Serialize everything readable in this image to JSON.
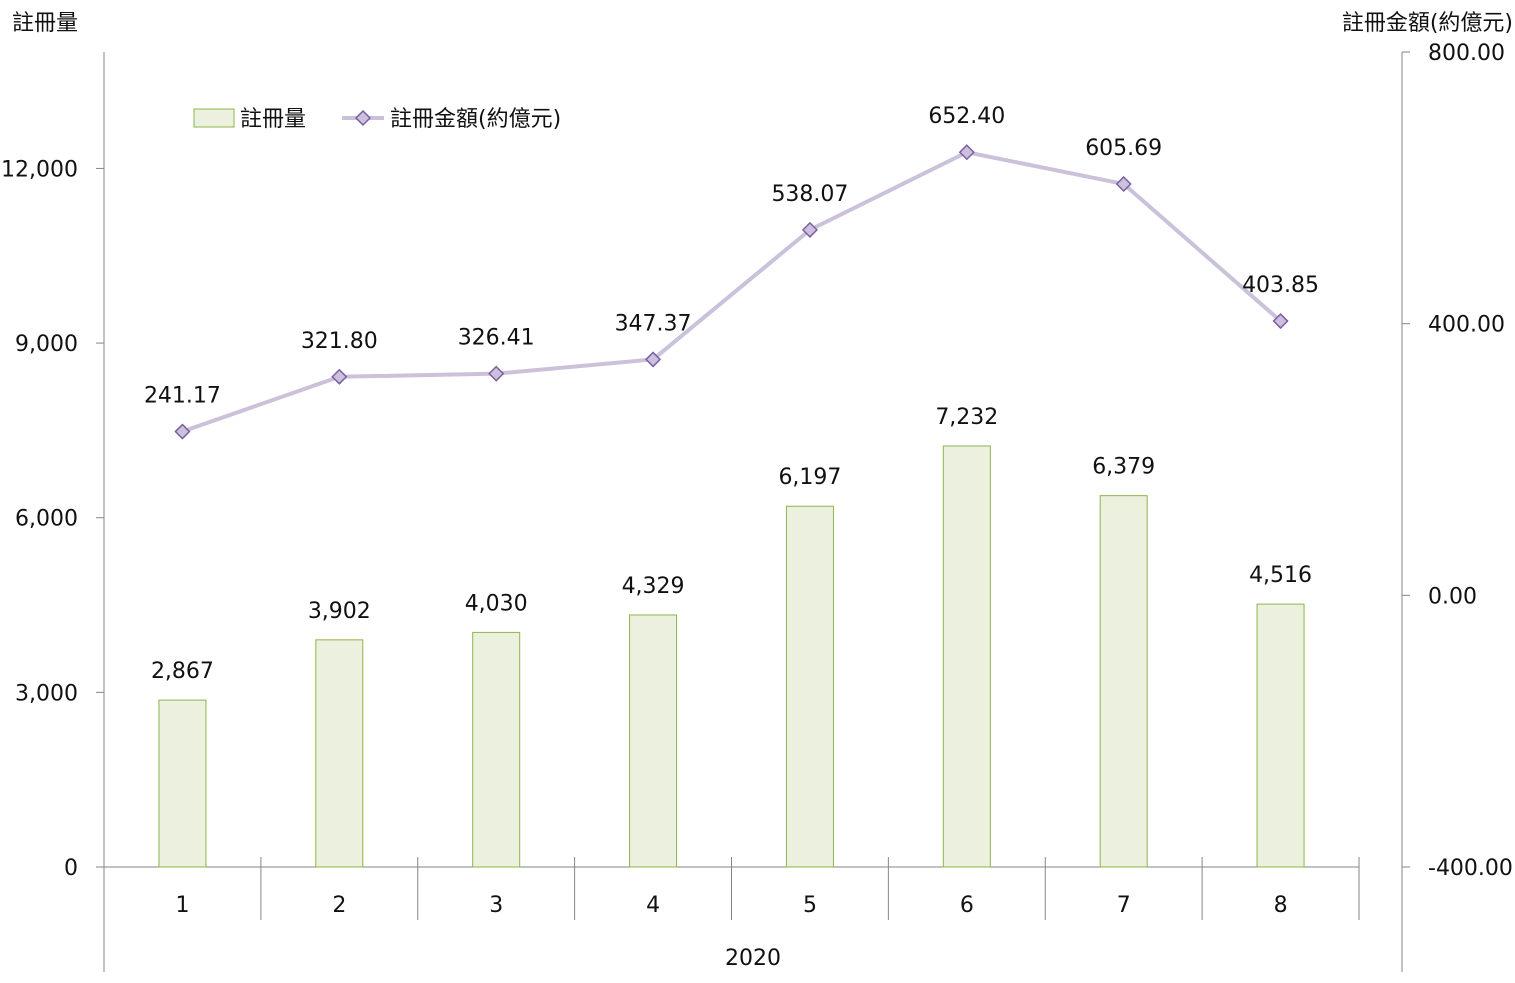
{
  "chart_data": {
    "type": "bar",
    "title": "",
    "categories": [
      "1",
      "2",
      "3",
      "4",
      "5",
      "6",
      "7",
      "8"
    ],
    "category_group": "2020",
    "series": [
      {
        "name": "註冊量",
        "type": "bar",
        "axis": "left",
        "values": [
          2867,
          3902,
          4030,
          4329,
          6197,
          7232,
          6379,
          4516
        ],
        "labels": [
          "2,867",
          "3,902",
          "4,030",
          "4,329",
          "6,197",
          "7,232",
          "6,379",
          "4,516"
        ],
        "fill": "#ebf1de",
        "stroke": "#8db54a"
      },
      {
        "name": "註冊金額(約億元)",
        "type": "line",
        "axis": "right",
        "values": [
          241.17,
          321.8,
          326.41,
          347.37,
          538.07,
          652.4,
          605.69,
          403.85
        ],
        "labels": [
          "241.17",
          "321.80",
          "326.41",
          "347.37",
          "538.07",
          "652.40",
          "605.69",
          "403.85"
        ],
        "line_color": "#ccc1da",
        "marker_fill": "#ccc1da",
        "marker_stroke": "#7b5ea7",
        "marker": "diamond"
      }
    ],
    "y_left": {
      "label": "註冊量",
      "ylim": [
        0,
        14000
      ],
      "ticks": [
        0,
        3000,
        6000,
        9000,
        12000
      ],
      "tick_labels": [
        "0",
        "3,000",
        "6,000",
        "9,000",
        "12,000"
      ]
    },
    "y_right": {
      "label": "註冊金額(約億元)",
      "ylim": [
        -400,
        800
      ],
      "ticks": [
        -400,
        0,
        400,
        800
      ],
      "tick_labels": [
        "-400.00",
        "0.00",
        "400.00",
        "800.00"
      ]
    },
    "legend": "top-left",
    "grid": false,
    "axis_color": "#868686"
  }
}
